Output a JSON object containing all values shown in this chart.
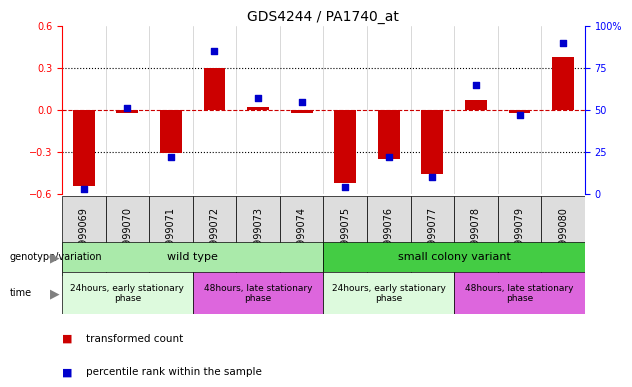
{
  "title": "GDS4244 / PA1740_at",
  "samples": [
    "GSM999069",
    "GSM999070",
    "GSM999071",
    "GSM999072",
    "GSM999073",
    "GSM999074",
    "GSM999075",
    "GSM999076",
    "GSM999077",
    "GSM999078",
    "GSM999079",
    "GSM999080"
  ],
  "bar_values": [
    -0.54,
    -0.02,
    -0.31,
    0.3,
    0.02,
    -0.02,
    -0.52,
    -0.35,
    -0.46,
    0.07,
    -0.02,
    0.38
  ],
  "dot_values": [
    3,
    51,
    22,
    85,
    57,
    55,
    4,
    22,
    10,
    65,
    47,
    90
  ],
  "ylim_left": [
    -0.6,
    0.6
  ],
  "ylim_right": [
    0,
    100
  ],
  "yticks_left": [
    -0.6,
    -0.3,
    0,
    0.3,
    0.6
  ],
  "yticks_right": [
    0,
    25,
    50,
    75,
    100
  ],
  "bar_color": "#cc0000",
  "dot_color": "#0000cc",
  "hline_color": "#cc0000",
  "dotted_color": "#000000",
  "genotype_row": [
    {
      "label": "wild type",
      "start": 0,
      "end": 6,
      "color": "#aaeaaa"
    },
    {
      "label": "small colony variant",
      "start": 6,
      "end": 12,
      "color": "#44cc44"
    }
  ],
  "time_row": [
    {
      "label": "24hours, early stationary\nphase",
      "start": 0,
      "end": 3,
      "color": "#ddfadd"
    },
    {
      "label": "48hours, late stationary\nphase",
      "start": 3,
      "end": 6,
      "color": "#dd66dd"
    },
    {
      "label": "24hours, early stationary\nphase",
      "start": 6,
      "end": 9,
      "color": "#ddfadd"
    },
    {
      "label": "48hours, late stationary\nphase",
      "start": 9,
      "end": 12,
      "color": "#dd66dd"
    }
  ],
  "legend_items": [
    {
      "label": "transformed count",
      "color": "#cc0000"
    },
    {
      "label": "percentile rank within the sample",
      "color": "#0000cc"
    }
  ],
  "genotype_label": "genotype/variation",
  "time_label": "time",
  "title_fontsize": 10,
  "tick_fontsize": 7,
  "bar_width": 0.5
}
